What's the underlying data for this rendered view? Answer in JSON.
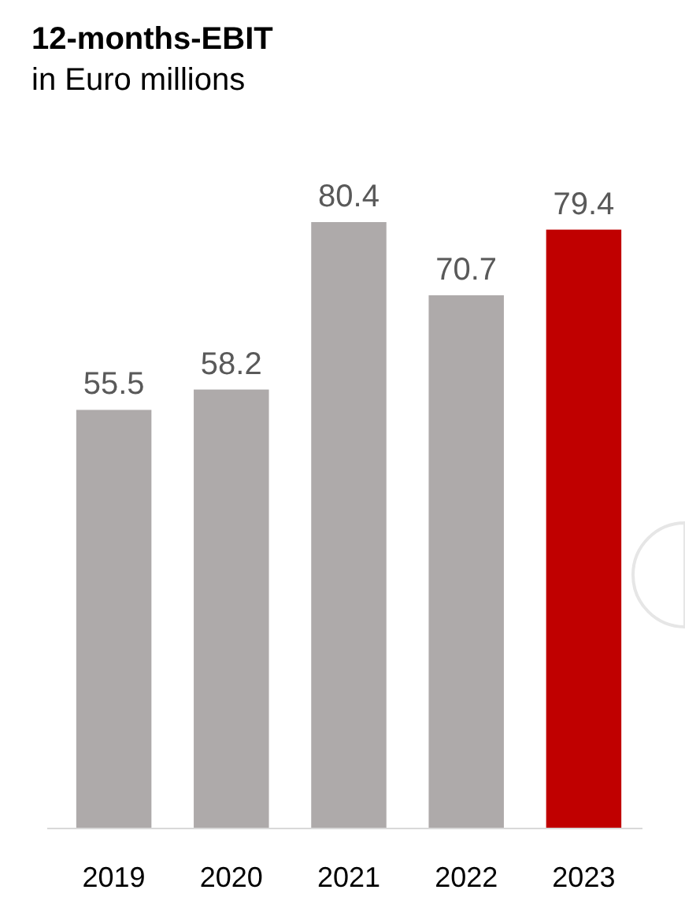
{
  "chart_data": {
    "type": "bar",
    "title": "12-months-EBIT",
    "subtitle": "in Euro millions",
    "categories": [
      "2019",
      "2020",
      "2021",
      "2022",
      "2023"
    ],
    "values": [
      55.5,
      58.2,
      80.4,
      70.7,
      79.4
    ],
    "colors": [
      "#aeaaaa",
      "#aeaaaa",
      "#aeaaaa",
      "#aeaaaa",
      "#c00000"
    ],
    "data_labels": true
  }
}
